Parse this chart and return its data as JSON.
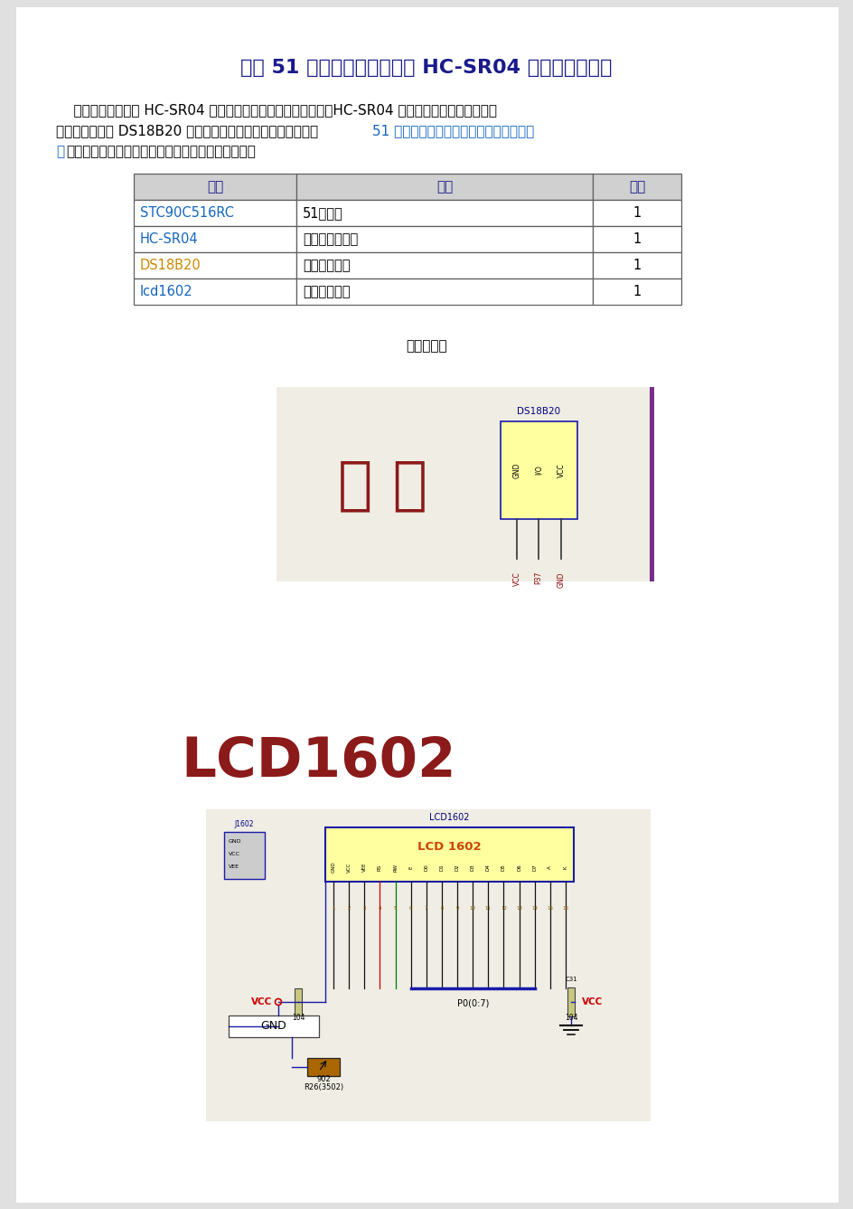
{
  "bg_color": "#e0e0e0",
  "page_bg": "#ffffff",
  "title": "基于 51 单片机带温度补偿的 HC-SR04 超声波测距系统",
  "title_color": "#1a1a8c",
  "title_fontsize": 16,
  "body_color": "#000000",
  "link_color": "#1565c0",
  "orange_link": "#cc8800",
  "para_line1": "    利用从网上购买的 HC-SR04 超声波模块制作了一个测距装置，HC-SR04 自身不带温度补偿功能，所",
  "para_line2_black": "以加上一个使用 DS18B20 做的温度测量模块。整个系统包括：",
  "para_line2_blue": "51 单片机最小系统，超声波测距模块、温",
  "para_line3_blue": "度",
  "para_line3_black": "测量模块、液晶显示模块。使用了如下主要元器件：",
  "table_headers": [
    "元件",
    "说明",
    "数量"
  ],
  "table_rows": [
    [
      "STC90C516RC",
      "51单片机",
      "1"
    ],
    [
      "HC-SR04",
      "超声波测距模块",
      "1"
    ],
    [
      "DS18B20",
      "温度测量模块",
      "1"
    ],
    [
      "lcd1602",
      "液晶显示模块",
      "1"
    ]
  ],
  "row_colors_col0": [
    "#1565c0",
    "#1565c0",
    "#cc8800",
    "#1565c0"
  ],
  "section_label": "系统电路图",
  "wendu_text": "温 度",
  "wendu_color": "#8b1a1a",
  "lcd_title": "LCD1602",
  "lcd_title_color": "#8b1a1a",
  "ds18b20_label": "DS18B20",
  "ds_label_color": "#000080",
  "purple_color": "#7b2d8b",
  "circuit_bg": "#efede4",
  "chip_fill": "#ffffa0",
  "chip_border": "#1a1aaa",
  "wire_dark": "#111111",
  "wire_red": "#cc0000",
  "wire_green": "#007700",
  "wire_blue": "#0000cc",
  "blue_color": "#1a1aaa",
  "vcc_color": "#cc0000",
  "ds_pin_labels": [
    "GND",
    "I/O",
    "VCC"
  ],
  "ds_bot_labels": [
    "VCC",
    "P37",
    "GND"
  ]
}
